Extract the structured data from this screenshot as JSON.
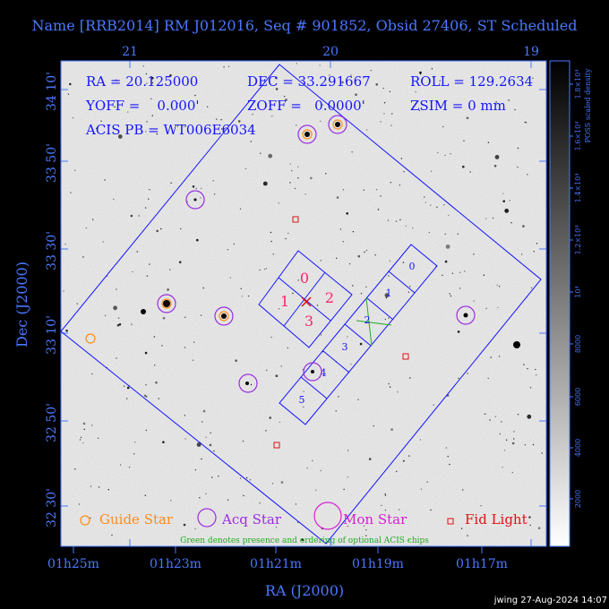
{
  "title": "Name [RRB2014] RM J012016, Seq # 901852, Obsid 27406, ST Scheduled",
  "info": {
    "ra": "RA = 20.125000",
    "dec": "DEC = 33.291667",
    "roll": "ROLL = 129.2634",
    "yoff": "YOFF =    0.000'",
    "zoff": "ZOFF =   0.0000'",
    "zsim": "ZSIM = 0 mm",
    "acis_pb": "ACIS PB = WT006E6034"
  },
  "axes": {
    "top_ticks": [
      "21",
      "20",
      "19"
    ],
    "left_ticks": [
      "34 10'",
      "33 50'",
      "33 30'",
      "33 10'",
      "32 50'",
      "32 30'"
    ],
    "bottom_ticks": [
      "01h25m",
      "01h23m",
      "01h21m",
      "01h19m",
      "01h17m"
    ],
    "xlabel": "RA (J2000)",
    "ylabel": "Dec (J2000)"
  },
  "colorbar": {
    "label": "POSS scaled density",
    "ticks": [
      "2000",
      "4000",
      "6000",
      "8000",
      "10⁴",
      "1.2×10⁴",
      "1.4×10⁴",
      "1.6×10⁴",
      "1.8×10⁴"
    ]
  },
  "chips": {
    "left_labels": [
      "0",
      "1",
      "2",
      "3"
    ],
    "right_labels": [
      "0",
      "1",
      "2",
      "3",
      "4",
      "5"
    ]
  },
  "legend": {
    "guide": "Guide Star",
    "acq": "Acq Star",
    "mon": "Mon Star",
    "fid": "Fid Light",
    "note": "Green denotes presence and ordering of optional ACIS chips"
  },
  "colors": {
    "guide": "#ff8c1a",
    "acq": "#9a2ee0",
    "mon": "#d61fd6",
    "fid": "#e01010",
    "field": "#1414ff",
    "optional": "#22aa22"
  },
  "stamp": "jwing 27-Aug-2024 14:07"
}
